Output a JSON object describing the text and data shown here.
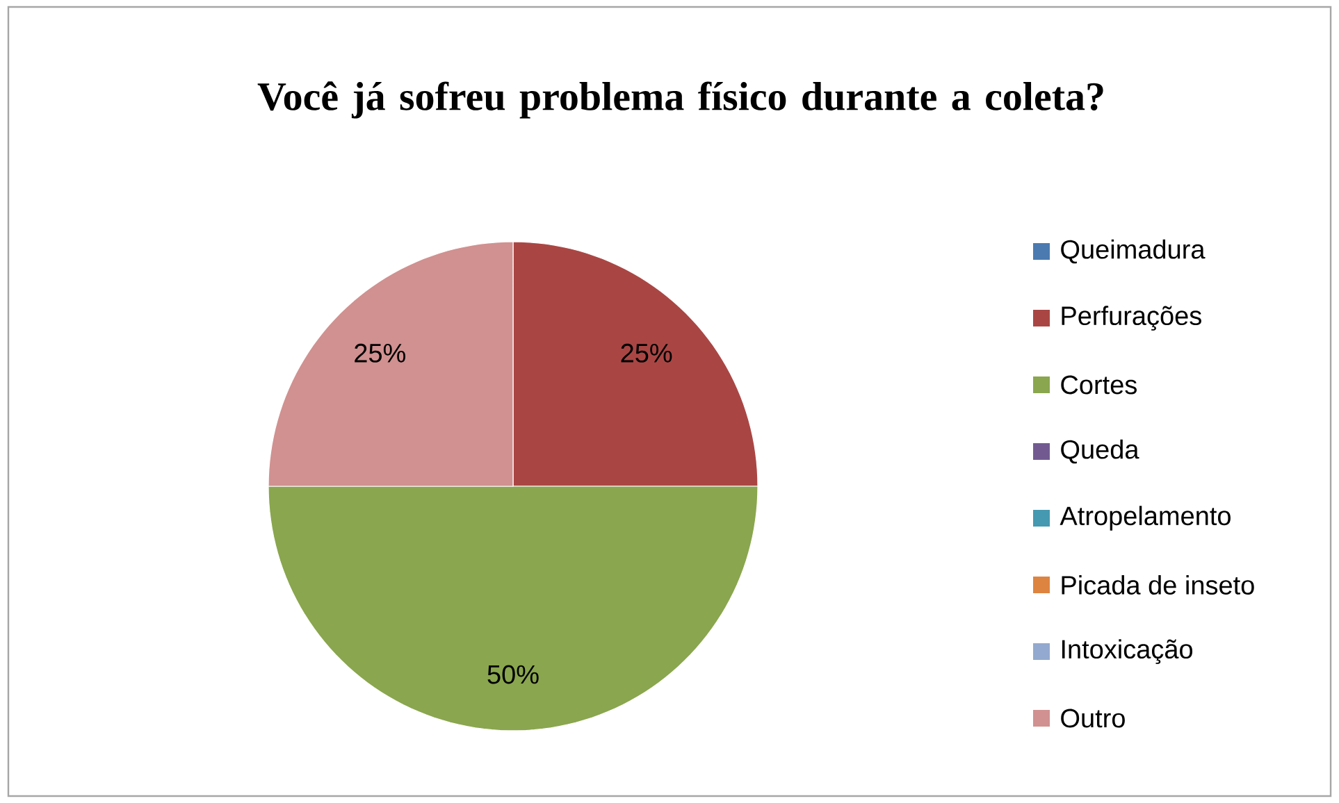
{
  "chart_data": {
    "type": "pie",
    "title": "Você já sofreu problema físico durante a coleta?",
    "categories": [
      "Queimadura",
      "Perfurações",
      "Cortes",
      "Queda",
      "Atropelamento",
      "Picada de inseto",
      "Intoxicação",
      "Outro"
    ],
    "values": [
      0,
      25,
      50,
      0,
      0,
      0,
      0,
      25
    ],
    "colors": [
      "#4a7ab0",
      "#a94644",
      "#8aa64e",
      "#725a91",
      "#4599b0",
      "#dd8440",
      "#93a9cf",
      "#d09190"
    ],
    "value_labels": [
      null,
      "25%",
      "50%",
      null,
      null,
      null,
      null,
      "25%"
    ],
    "legend": "right"
  }
}
